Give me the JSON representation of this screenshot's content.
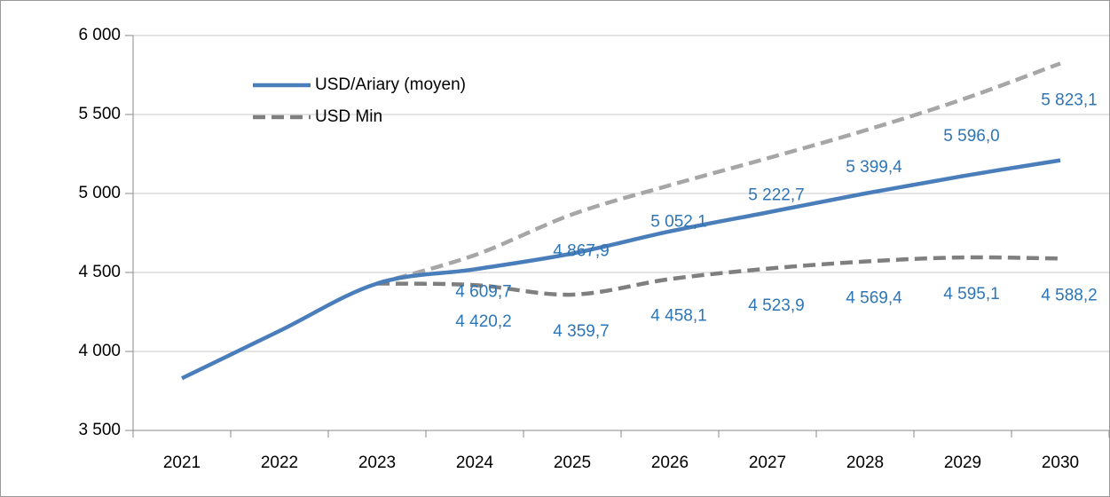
{
  "chart_data": {
    "type": "line",
    "categories": [
      "2021",
      "2022",
      "2023",
      "2024",
      "2025",
      "2026",
      "2027",
      "2028",
      "2029",
      "2030"
    ],
    "series": [
      {
        "name": "USD/Ariary (moyen)",
        "color": "#4a7ebb",
        "dash": false,
        "values": [
          3830,
          4130,
          4430,
          4520,
          4620,
          4760,
          4880,
          5000,
          5110,
          5210
        ]
      },
      {
        "name": "USD Min",
        "color": "#7f7f7f",
        "dash": true,
        "values": [
          null,
          null,
          4430,
          4420.2,
          4359.7,
          4458.1,
          4523.9,
          4569.4,
          4595.1,
          4588.2
        ],
        "value_labels": [
          null,
          null,
          null,
          "4 420,2",
          "4 359,7",
          "4 458,1",
          "4 523,9",
          "4 569,4",
          "4 595,1",
          "4 588,2"
        ]
      },
      {
        "color": "#a6a6a6",
        "dash": true,
        "values": [
          null,
          null,
          4430,
          4609.7,
          4867.9,
          5052.1,
          5222.7,
          5399.4,
          5596.0,
          5823.1
        ],
        "value_labels": [
          null,
          null,
          null,
          "4 609,7",
          "4 867,9",
          "5 052,1",
          "5 222,7",
          "5 399,4",
          "5 596,0",
          "5 823,1"
        ]
      }
    ],
    "ylim": [
      3500,
      6000
    ],
    "yticks": [
      {
        "value": 3500,
        "label": "3 500"
      },
      {
        "value": 4000,
        "label": "4 000"
      },
      {
        "value": 4500,
        "label": "4 500"
      },
      {
        "value": 5000,
        "label": "5 000"
      },
      {
        "value": 5500,
        "label": "5 500"
      },
      {
        "value": 6000,
        "label": "6 000"
      }
    ],
    "grid": true
  }
}
